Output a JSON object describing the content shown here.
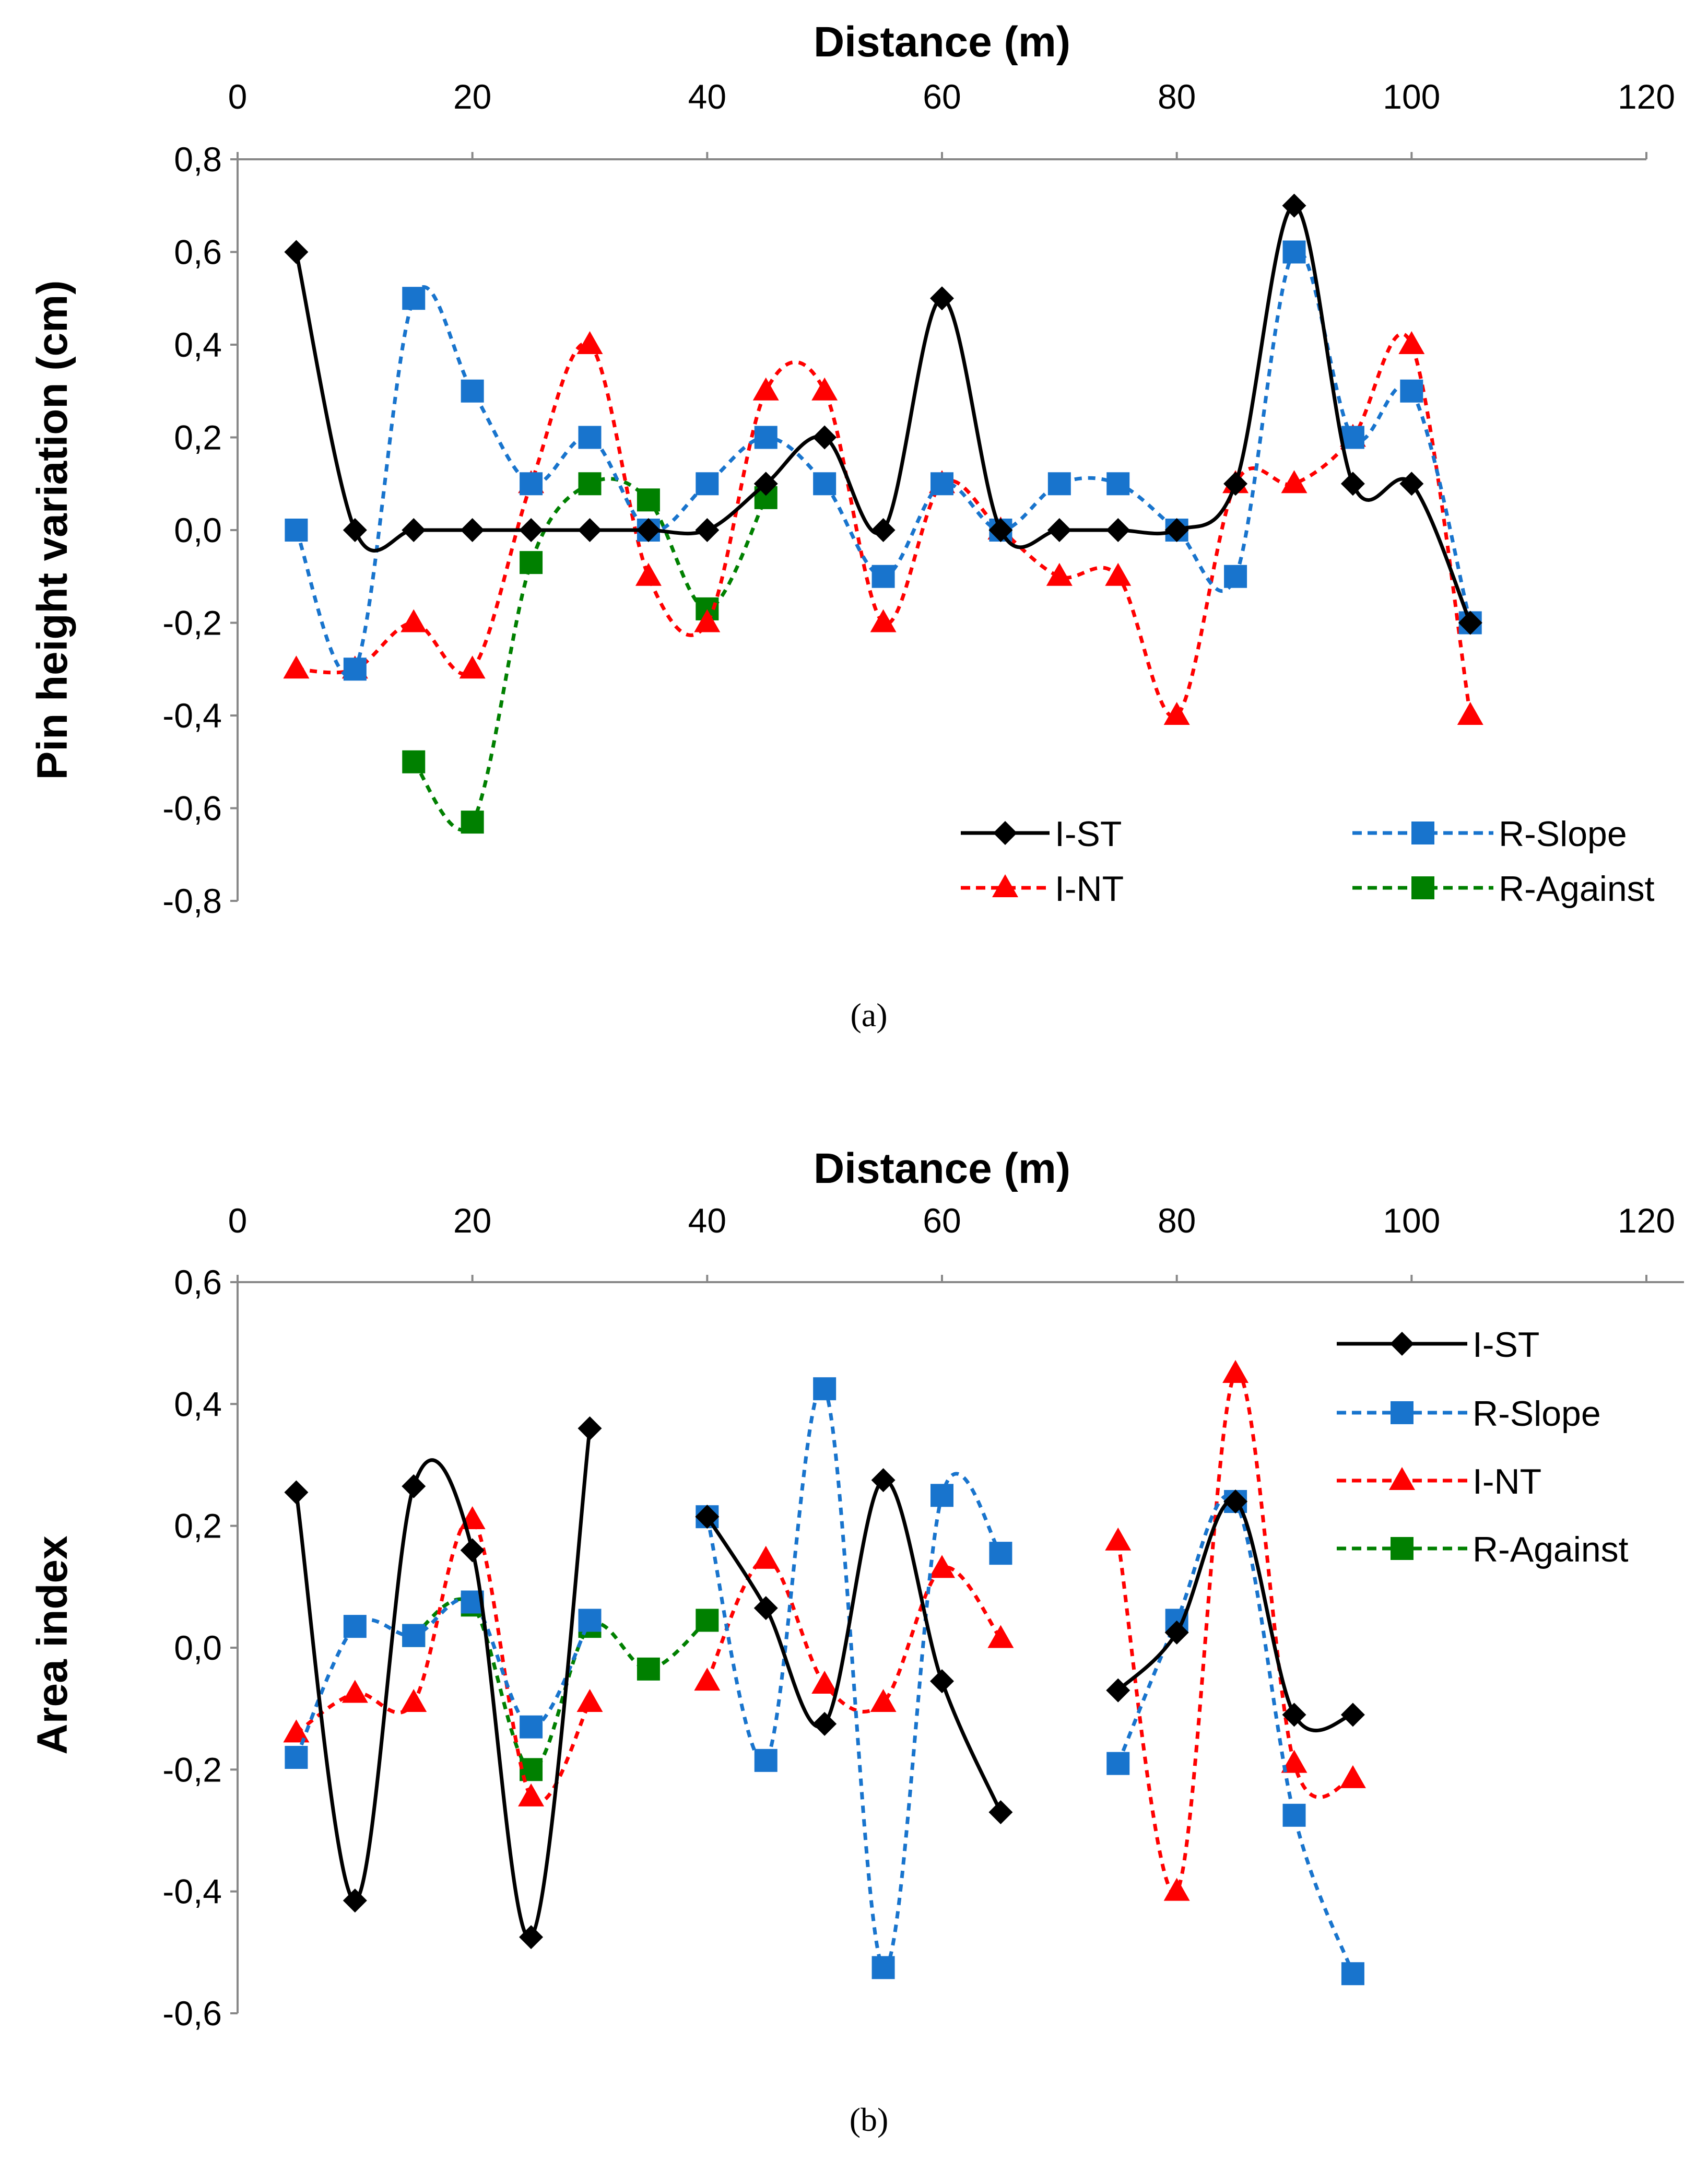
{
  "colors": {
    "I-ST": "#000000",
    "R-Slope": "#1874CD",
    "I-NT": "#FF0000",
    "R-Against": "#008000"
  },
  "chart_data": [
    {
      "type": "line",
      "caption": "(a)",
      "title": "Distance (m)",
      "xlabel": "Distance (m)",
      "ylabel": "Pin height variation (cm)",
      "xlim": [
        0,
        120
      ],
      "ylim": [
        -0.8,
        0.8
      ],
      "xticks": [
        0,
        20,
        40,
        60,
        80,
        100,
        120
      ],
      "xtick_labels": [
        "0",
        "20",
        "40",
        "60",
        "80",
        "100",
        "120"
      ],
      "yticks": [
        -0.8,
        -0.6,
        -0.4,
        -0.2,
        0,
        0.2,
        0.4,
        0.6,
        0.8
      ],
      "ytick_labels": [
        "-0,8",
        "-0,6",
        "-0,4",
        "-0,2",
        "0,0",
        "0,2",
        "0,4",
        "0,6",
        "0,8"
      ],
      "legend_position": "bottom-right",
      "series": [
        {
          "name": "I-ST",
          "marker": "diamond",
          "dash": "solid",
          "x": [
            5,
            10,
            15,
            20,
            25,
            30,
            35,
            40,
            45,
            50,
            55,
            60,
            65,
            70,
            75,
            80,
            85,
            90,
            95,
            100,
            105
          ],
          "y": [
            0.6,
            0,
            0,
            0,
            0,
            0,
            0,
            0,
            0.1,
            0.2,
            0,
            0.5,
            0,
            0,
            0,
            0,
            0.1,
            0.7,
            0.1,
            0.1,
            -0.2
          ]
        },
        {
          "name": "R-Slope",
          "marker": "square",
          "dash": "dotted",
          "x": [
            5,
            10,
            15,
            20,
            25,
            30,
            35,
            40,
            45,
            50,
            55,
            60,
            65,
            70,
            75,
            80,
            85,
            90,
            95,
            100,
            105
          ],
          "y": [
            0,
            -0.3,
            0.5,
            0.3,
            0.1,
            0.2,
            0,
            0.1,
            0.2,
            0.1,
            -0.1,
            0.1,
            0,
            0.1,
            0.1,
            0,
            -0.1,
            0.6,
            0.2,
            0.3,
            -0.2
          ]
        },
        {
          "name": "I-NT",
          "marker": "triangle",
          "dash": "dotted",
          "x": [
            5,
            10,
            15,
            20,
            25,
            30,
            35,
            40,
            45,
            50,
            55,
            60,
            65,
            70,
            75,
            80,
            85,
            90,
            95,
            100,
            105
          ],
          "y": [
            -0.3,
            -0.3,
            -0.2,
            -0.3,
            0.1,
            0.4,
            -0.1,
            -0.2,
            0.3,
            0.3,
            -0.2,
            0.1,
            0,
            -0.1,
            -0.1,
            -0.4,
            0.1,
            0.1,
            0.2,
            0.4,
            -0.4
          ]
        },
        {
          "name": "R-Against",
          "marker": "square",
          "dash": "dotted",
          "x": [
            15,
            20,
            25,
            30,
            35,
            40,
            45
          ],
          "y": [
            -0.5,
            -0.63,
            -0.07,
            0.1,
            0.065,
            -0.17,
            0.07
          ]
        }
      ],
      "legend_order": [
        "I-ST",
        "R-Slope",
        "I-NT",
        "R-Against"
      ]
    },
    {
      "type": "line",
      "caption": "(b)",
      "title": "Distance (m)",
      "xlabel": "Distance (m)",
      "ylabel": "Area index",
      "xlim": [
        0,
        120
      ],
      "ylim": [
        -0.6,
        0.6
      ],
      "xticks": [
        0,
        20,
        40,
        60,
        80,
        100,
        120
      ],
      "xtick_labels": [
        "0",
        "20",
        "40",
        "60",
        "80",
        "100",
        "120"
      ],
      "yticks": [
        -0.6,
        -0.4,
        -0.2,
        0,
        0.2,
        0.4,
        0.6
      ],
      "ytick_labels": [
        "-0,6",
        "-0,4",
        "-0,2",
        "0,0",
        "0,2",
        "0,4",
        "0,6"
      ],
      "legend_position": "top-right",
      "series": [
        {
          "name": "I-ST",
          "marker": "diamond",
          "dash": "solid",
          "segments": [
            {
              "x": [
                5,
                10,
                15,
                20,
                25,
                30
              ],
              "y": [
                0.255,
                -0.415,
                0.265,
                0.16,
                -0.475,
                0.36
              ]
            },
            {
              "x": [
                40,
                45,
                50,
                55,
                60,
                65
              ],
              "y": [
                0.215,
                0.065,
                -0.125,
                0.275,
                -0.055,
                -0.27
              ]
            },
            {
              "x": [
                75,
                80,
                85,
                90,
                95
              ],
              "y": [
                -0.07,
                0.025,
                0.24,
                -0.11,
                -0.11
              ]
            }
          ]
        },
        {
          "name": "R-Slope",
          "marker": "square",
          "dash": "dotted",
          "segments": [
            {
              "x": [
                5,
                10,
                15,
                20,
                25,
                30
              ],
              "y": [
                -0.18,
                0.035,
                0.02,
                0.075,
                -0.13,
                0.045
              ]
            },
            {
              "x": [
                40,
                45,
                50,
                55,
                60,
                65
              ],
              "y": [
                0.215,
                -0.185,
                0.425,
                -0.525,
                0.25,
                0.155
              ]
            },
            {
              "x": [
                75,
                80,
                85,
                90,
                95
              ],
              "y": [
                -0.19,
                0.045,
                0.24,
                -0.275,
                -0.535
              ]
            }
          ]
        },
        {
          "name": "I-NT",
          "marker": "triangle",
          "dash": "dotted",
          "segments": [
            {
              "x": [
                5,
                10,
                15,
                20,
                25,
                30
              ],
              "y": [
                -0.14,
                -0.075,
                -0.09,
                0.21,
                -0.245,
                -0.09
              ]
            },
            {
              "x": [
                40,
                45,
                50,
                55,
                60,
                65
              ],
              "y": [
                -0.055,
                0.145,
                -0.06,
                -0.09,
                0.13,
                0.015
              ]
            },
            {
              "x": [
                75,
                80,
                85,
                90,
                95
              ],
              "y": [
                0.175,
                -0.4,
                0.45,
                -0.19,
                -0.215
              ]
            }
          ]
        },
        {
          "name": "R-Against",
          "marker": "square",
          "dash": "dotted",
          "segments": [
            {
              "x": [
                15,
                20,
                25,
                30,
                35,
                40
              ],
              "y": [
                0.02,
                0.07,
                -0.2,
                0.035,
                -0.035,
                0.045
              ]
            }
          ]
        }
      ],
      "legend_order": [
        "I-ST",
        "R-Slope",
        "I-NT",
        "R-Against"
      ]
    }
  ]
}
